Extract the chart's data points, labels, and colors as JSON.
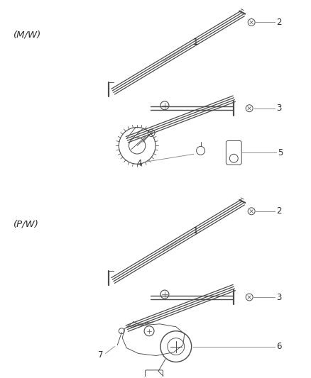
{
  "bg_color": "#ffffff",
  "line_color": "#4a4a4a",
  "label_color": "#2a2a2a",
  "leader_color": "#888888",
  "section1_label": "(M/W)",
  "section2_label": "(P/W)",
  "font_size_section": 9.5,
  "font_size_num": 8.5
}
